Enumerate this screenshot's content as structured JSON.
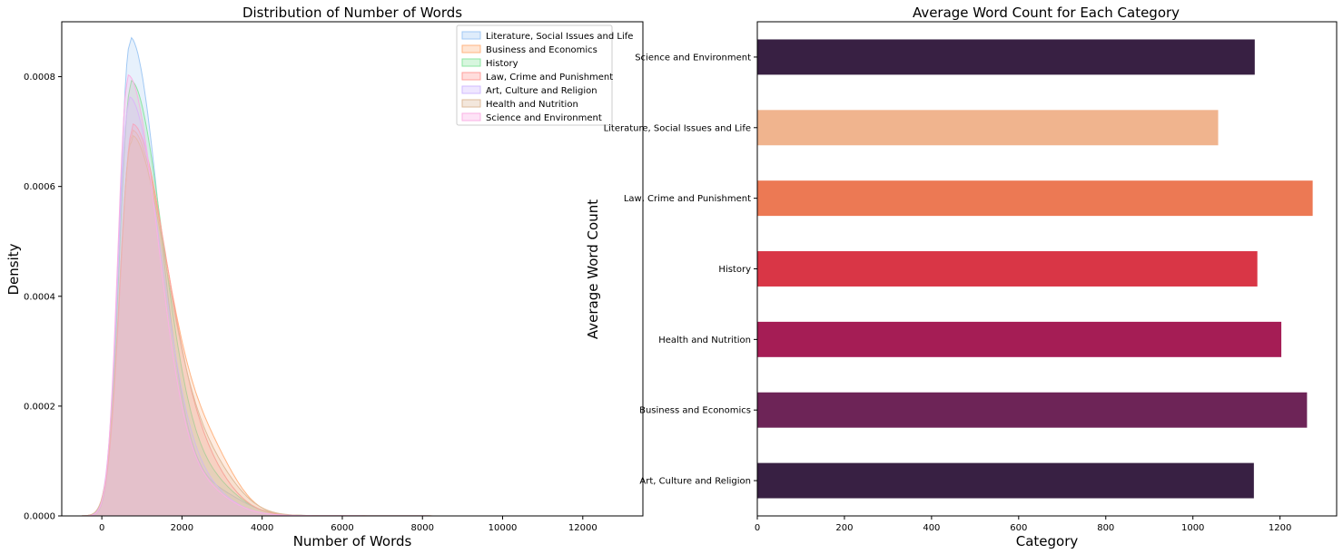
{
  "chart_data": [
    {
      "type": "area",
      "title": "Distribution of Number of Words",
      "xlabel": "Number of Words",
      "ylabel": "Density",
      "xlim": [
        -1000,
        13500
      ],
      "ylim": [
        0,
        0.0009
      ],
      "xticks": [
        0,
        2000,
        4000,
        6000,
        8000,
        10000,
        12000
      ],
      "xtick_labels": [
        "0",
        "2000",
        "4000",
        "6000",
        "8000",
        "10000",
        "12000"
      ],
      "yticks": [
        0,
        0.0002,
        0.0004,
        0.0006,
        0.0008
      ],
      "ytick_labels": [
        "0.0000",
        "0.0002",
        "0.0004",
        "0.0006",
        "0.0008"
      ],
      "legend_position": "top-right",
      "series": [
        {
          "name": "Literature, Social Issues and Life",
          "color": "#a1c9f4",
          "peak_x": 700,
          "peak": 0.00086,
          "sl": 260,
          "sr": 750,
          "tail": 4e-05,
          "tail_x": 2800,
          "tail_s": 700
        },
        {
          "name": "Business and Economics",
          "color": "#ffb482",
          "peak_x": 750,
          "peak": 0.00069,
          "sl": 300,
          "sr": 900,
          "tail": 9e-05,
          "tail_x": 2700,
          "tail_s": 650
        },
        {
          "name": "History",
          "color": "#8de5a1",
          "peak_x": 720,
          "peak": 0.00078,
          "sl": 280,
          "sr": 820,
          "tail": 5e-05,
          "tail_x": 2700,
          "tail_s": 700
        },
        {
          "name": "Law, Crime and Punishment",
          "color": "#ff9f9b",
          "peak_x": 760,
          "peak": 0.0007,
          "sl": 300,
          "sr": 880,
          "tail": 6e-05,
          "tail_x": 2600,
          "tail_s": 700
        },
        {
          "name": "Art, Culture and Religion",
          "color": "#d0bbff",
          "peak_x": 680,
          "peak": 0.00075,
          "sl": 270,
          "sr": 800,
          "tail": 4e-05,
          "tail_x": 2500,
          "tail_s": 700
        },
        {
          "name": "Health and Nutrition",
          "color": "#debb9b",
          "peak_x": 740,
          "peak": 0.00068,
          "sl": 300,
          "sr": 900,
          "tail": 7e-05,
          "tail_x": 2700,
          "tail_s": 700
        },
        {
          "name": "Science and Environment",
          "color": "#fab0e4",
          "peak_x": 650,
          "peak": 0.00079,
          "sl": 250,
          "sr": 760,
          "tail": 4e-05,
          "tail_x": 2500,
          "tail_s": 700
        }
      ]
    },
    {
      "type": "bar",
      "orientation": "horizontal",
      "title": "Average Word Count for Each Category",
      "xlabel": "Category",
      "ylabel": "Average Word Count",
      "xlim": [
        0,
        1330
      ],
      "xticks": [
        0,
        200,
        400,
        600,
        800,
        1000,
        1200
      ],
      "xtick_labels": [
        "0",
        "200",
        "400",
        "600",
        "800",
        "1000",
        "1200"
      ],
      "categories": [
        "Science and Environment",
        "Literature, Social Issues and Life",
        "Law, Crime and Punishment",
        "History",
        "Health and Nutrition",
        "Business and Economics",
        "Art, Culture and Religion"
      ],
      "values": [
        1142,
        1058,
        1275,
        1148,
        1203,
        1262,
        1140
      ],
      "colors": [
        "#382043",
        "#f0b48e",
        "#ec7954",
        "#d93646",
        "#a51d55",
        "#6d2457",
        "#382043"
      ]
    }
  ]
}
